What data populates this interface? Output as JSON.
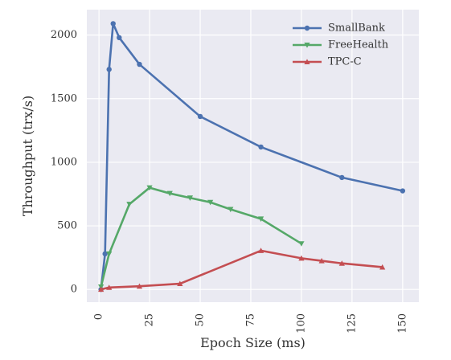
{
  "chart_data": {
    "type": "line",
    "title": "",
    "xlabel": "Epoch Size (ms)",
    "ylabel": "Throughput (trx/s)",
    "xlim": [
      -6,
      158
    ],
    "ylim": [
      -100,
      2200
    ],
    "xticks": [
      0,
      25,
      50,
      75,
      100,
      125,
      150
    ],
    "yticks": [
      0,
      500,
      1000,
      1500,
      2000
    ],
    "xtick_labels": [
      "0",
      "25",
      "50",
      "75",
      "100",
      "125",
      "150"
    ],
    "ytick_labels": [
      "0",
      "500",
      "1000",
      "1500",
      "2000"
    ],
    "xtick_rotation": "vertical",
    "grid": true,
    "legend_position": "upper right",
    "series": [
      {
        "name": "SmallBank",
        "color": "#4c72b0",
        "marker": "circle",
        "x": [
          1,
          3,
          5,
          7,
          10,
          20,
          50,
          80,
          120,
          150
        ],
        "y": [
          0,
          280,
          1730,
          2090,
          1980,
          1770,
          1360,
          1120,
          880,
          775
        ]
      },
      {
        "name": "FreeHealth",
        "color": "#55a868",
        "marker": "triangle-down",
        "x": [
          1,
          5,
          15,
          25,
          35,
          45,
          55,
          65,
          80,
          100
        ],
        "y": [
          20,
          280,
          670,
          800,
          755,
          720,
          685,
          630,
          555,
          360
        ]
      },
      {
        "name": "TPC-C",
        "color": "#c44e52",
        "marker": "triangle-up",
        "x": [
          1,
          5,
          20,
          40,
          80,
          100,
          110,
          120,
          140
        ],
        "y": [
          0,
          15,
          25,
          45,
          305,
          245,
          225,
          205,
          175
        ]
      }
    ]
  }
}
